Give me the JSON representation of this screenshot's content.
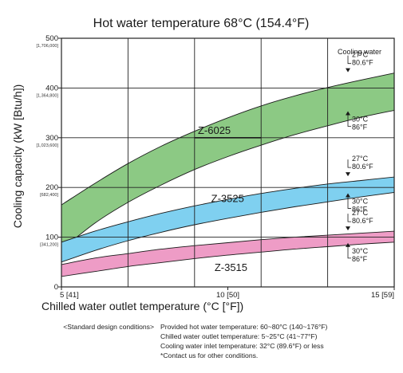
{
  "chart_data": {
    "type": "area",
    "title": "Hot water temperature 68°C (154.4°F)",
    "xlabel": "Chilled water outlet temperature (°C [°F])",
    "ylabel": "Cooling capacity (kW [Btu/h])",
    "xlim": [
      5,
      15
    ],
    "ylim": [
      0,
      500
    ],
    "x_ticks": [
      {
        "value": 5,
        "label": "5 [41]"
      },
      {
        "value": 10,
        "label": "10 [50]"
      },
      {
        "value": 15,
        "label": "15 [59]"
      }
    ],
    "y_ticks": [
      {
        "value": 0,
        "label": "0",
        "sub": ""
      },
      {
        "value": 100,
        "label": "100",
        "sub": "[341,200]"
      },
      {
        "value": 200,
        "label": "200",
        "sub": "[682,400]"
      },
      {
        "value": 300,
        "label": "300",
        "sub": "[1,023,600]"
      },
      {
        "value": 400,
        "label": "400",
        "sub": "[1,364,800]"
      },
      {
        "value": 500,
        "label": "500",
        "sub": "[1,706,000]"
      }
    ],
    "grid": true,
    "legend_title": "Cooling water",
    "series": [
      {
        "name": "Z-6025",
        "color": "#8cc984",
        "x": [
          5,
          6,
          7,
          8,
          9,
          10,
          11,
          12,
          13,
          14,
          15
        ],
        "upper": [
          165,
          208,
          248,
          283,
          313,
          340,
          364,
          384,
          401,
          416,
          430
        ],
        "lower": [
          75,
          128,
          170,
          205,
          236,
          262,
          285,
          306,
          324,
          341,
          355
        ],
        "upper_note": [
          "27°C",
          "80.6°F"
        ],
        "lower_note": [
          "30°C",
          "86°F"
        ]
      },
      {
        "name": "Z-3525",
        "color": "#7fd0f0",
        "x": [
          5,
          6,
          7,
          8,
          9,
          10,
          11,
          12,
          13,
          14,
          15
        ],
        "upper": [
          90,
          112,
          131,
          148,
          163,
          176,
          188,
          198,
          207,
          214,
          221
        ],
        "lower": [
          50,
          73,
          93,
          110,
          125,
          138,
          150,
          161,
          171,
          181,
          190
        ],
        "upper_note": [
          "27°C",
          "80.6°F"
        ],
        "lower_note": [
          "30°C",
          "86°F"
        ]
      },
      {
        "name": "Z-3515",
        "color": "#ee9cc6",
        "x": [
          5,
          6,
          7,
          8,
          9,
          10,
          11,
          12,
          13,
          14,
          15
        ],
        "upper": [
          45,
          58,
          67,
          76,
          83,
          89,
          95,
          100,
          104,
          108,
          112
        ],
        "lower": [
          21,
          31,
          41,
          49,
          57,
          64,
          70,
          76,
          81,
          86,
          90
        ],
        "upper_note": [
          "27°C",
          "80.6°F"
        ],
        "lower_note": [
          "30°C",
          "86°F"
        ]
      }
    ]
  },
  "notes": {
    "lead": "<Standard design conditions>",
    "lines": [
      "Provided hot water temperature: 60~80°C (140~176°F)",
      "Chilled water outlet temperature: 5~25°C (41~77°F)",
      "Cooling water inlet temperature: 32°C (89.6°F) or less",
      "*Contact us for other conditions."
    ]
  }
}
